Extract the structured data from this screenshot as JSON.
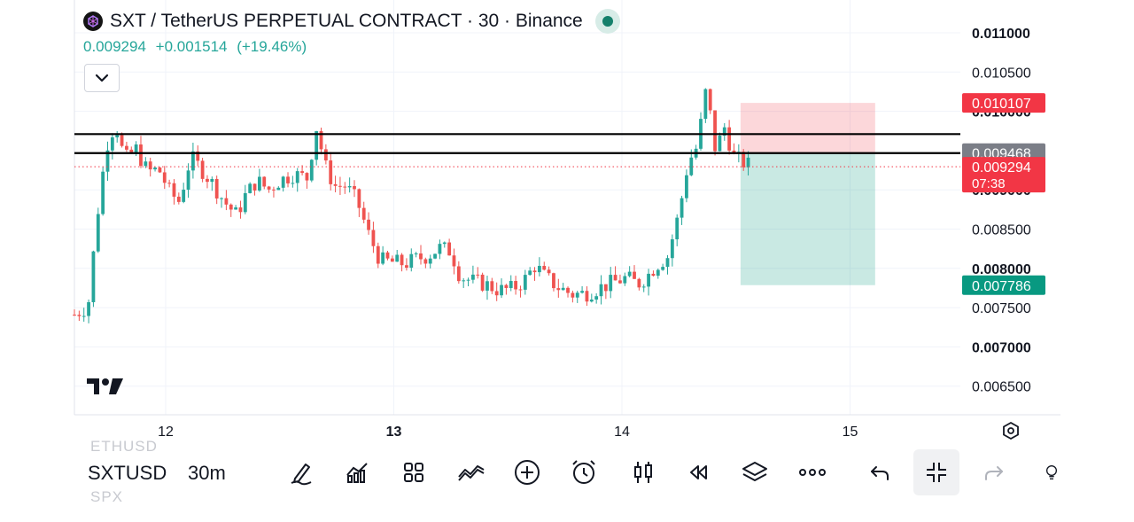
{
  "header": {
    "title": "SXT / TetherUS PERPETUAL CONTRACT · 30 · Binance",
    "last_price": "0.009294",
    "change": "+0.001514",
    "change_pct": "(+19.46%)"
  },
  "colors": {
    "up": "#26a69a",
    "down": "#ef5350",
    "accent": "#15806b"
  },
  "chart_data": {
    "type": "candlestick",
    "x_tick_labels": [
      "12",
      "13",
      "14",
      "15"
    ],
    "y_tick_labels": [
      {
        "label": "0.011000",
        "value": 0.011,
        "bold": true
      },
      {
        "label": "0.010500",
        "value": 0.0105,
        "bold": false
      },
      {
        "label": "0.010000",
        "value": 0.01,
        "bold": true
      },
      {
        "label": "0.009000",
        "value": 0.009,
        "bold": true
      },
      {
        "label": "0.008500",
        "value": 0.0085,
        "bold": false
      },
      {
        "label": "0.008000",
        "value": 0.008,
        "bold": true
      },
      {
        "label": "0.007500",
        "value": 0.0075,
        "bold": false
      },
      {
        "label": "0.007000",
        "value": 0.007,
        "bold": true
      },
      {
        "label": "0.006500",
        "value": 0.0065,
        "bold": false
      }
    ],
    "ylim": [
      0.0062,
      0.0113
    ],
    "price_badges": [
      {
        "label": "0.010107",
        "value": 0.010107,
        "color": "#f23645"
      },
      {
        "label": "0.009468",
        "value": 0.009468,
        "color": "#7b7e87"
      },
      {
        "label": "0.009294",
        "sub": "07:38",
        "value": 0.009294,
        "color": "#f23645"
      },
      {
        "label": "0.007786",
        "value": 0.007786,
        "color": "#089981"
      }
    ],
    "horizontal_lines": [
      0.00971,
      0.009468
    ],
    "last_price_line": 0.009294,
    "position": {
      "entry": 0.009468,
      "stop": 0.010107,
      "target": 0.007786,
      "start_x": 14.52,
      "end_x": 15.11
    },
    "x_range": [
      11.6,
      15.5
    ],
    "anchors": [
      [
        11.6,
        0.00741
      ],
      [
        11.66,
        0.00752
      ],
      [
        11.7,
        0.00866
      ],
      [
        11.74,
        0.00956
      ],
      [
        11.78,
        0.00985
      ],
      [
        11.82,
        0.00938
      ],
      [
        11.87,
        0.00952
      ],
      [
        11.92,
        0.00923
      ],
      [
        11.97,
        0.00926
      ],
      [
        12.02,
        0.00896
      ],
      [
        12.06,
        0.00885
      ],
      [
        12.11,
        0.00942
      ],
      [
        12.16,
        0.00925
      ],
      [
        12.21,
        0.00906
      ],
      [
        12.26,
        0.00884
      ],
      [
        12.31,
        0.00868
      ],
      [
        12.35,
        0.00893
      ],
      [
        12.4,
        0.00912
      ],
      [
        12.45,
        0.009
      ],
      [
        12.5,
        0.00912
      ],
      [
        12.56,
        0.0092
      ],
      [
        12.62,
        0.00915
      ],
      [
        12.66,
        0.0098
      ],
      [
        12.7,
        0.0093
      ],
      [
        12.74,
        0.00905
      ],
      [
        12.79,
        0.00905
      ],
      [
        12.84,
        0.00885
      ],
      [
        12.89,
        0.00843
      ],
      [
        12.94,
        0.0081
      ],
      [
        12.99,
        0.00808
      ],
      [
        13.05,
        0.00806
      ],
      [
        13.1,
        0.00812
      ],
      [
        13.15,
        0.00816
      ],
      [
        13.2,
        0.00826
      ],
      [
        13.25,
        0.00822
      ],
      [
        13.29,
        0.0079
      ],
      [
        13.34,
        0.00784
      ],
      [
        13.4,
        0.0078
      ],
      [
        13.46,
        0.00772
      ],
      [
        13.52,
        0.00774
      ],
      [
        13.57,
        0.00784
      ],
      [
        13.62,
        0.00804
      ],
      [
        13.66,
        0.0079
      ],
      [
        13.72,
        0.00776
      ],
      [
        13.78,
        0.00767
      ],
      [
        13.84,
        0.00768
      ],
      [
        13.9,
        0.00775
      ],
      [
        13.96,
        0.00782
      ],
      [
        14.02,
        0.00788
      ],
      [
        14.07,
        0.0078
      ],
      [
        14.11,
        0.0079
      ],
      [
        14.15,
        0.00804
      ],
      [
        14.2,
        0.00815
      ],
      [
        14.25,
        0.0087
      ],
      [
        14.29,
        0.00935
      ],
      [
        14.33,
        0.00955
      ],
      [
        14.37,
        0.0103
      ],
      [
        14.41,
        0.0095
      ],
      [
        14.45,
        0.0098
      ],
      [
        14.49,
        0.00942
      ],
      [
        14.53,
        0.00935
      ],
      [
        14.57,
        0.0093
      ]
    ]
  },
  "toolbar": {
    "symbol": "SXTUSD",
    "timeframe": "30m",
    "ghost_above": "ETHUSD",
    "ghost_below": "SPX"
  },
  "icons": [
    "pen-icon",
    "indicators-icon",
    "templates-icon",
    "compare-icon",
    "add-icon",
    "alert-icon",
    "candles-icon",
    "replay-icon",
    "layers-icon",
    "more-icon",
    "undo-icon",
    "exit-fullscreen-icon",
    "redo-icon",
    "bulb-icon"
  ]
}
